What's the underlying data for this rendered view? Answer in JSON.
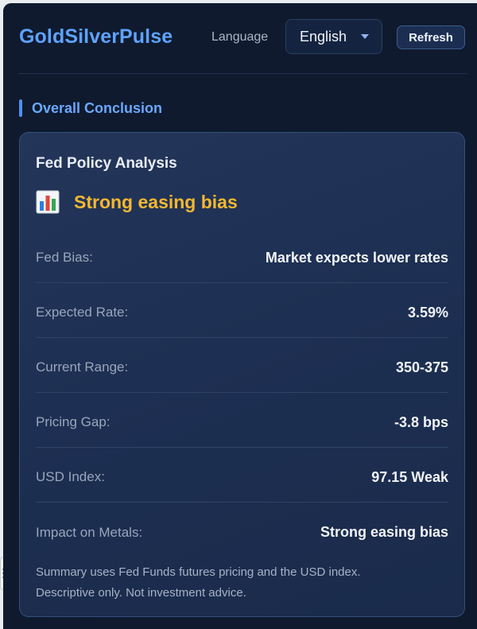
{
  "header": {
    "brand": "GoldSilverPulse",
    "language_label": "Language",
    "language_selected": "English",
    "refresh_label": "Refresh"
  },
  "section": {
    "title": "Overall Conclusion"
  },
  "card": {
    "title": "Fed Policy Analysis",
    "verdict_icon": "bar-chart-icon",
    "verdict": "Strong easing bias",
    "verdict_color": "#f5b731",
    "rows": [
      {
        "label": "Fed Bias:",
        "value": "Market expects lower rates"
      },
      {
        "label": "Expected Rate:",
        "value": "3.59%"
      },
      {
        "label": "Current Range:",
        "value": "350-375"
      },
      {
        "label": "Pricing Gap:",
        "value": "-3.8 bps"
      },
      {
        "label": "USD Index:",
        "value": "97.15 Weak"
      },
      {
        "label": "Impact on Metals:",
        "value": "Strong easing bias"
      }
    ],
    "footnote_line1": "Summary uses Fed Funds futures pricing and the USD index.",
    "footnote_line2": "Descriptive only. Not investment advice."
  },
  "colors": {
    "background": "#0f1a2e",
    "accent": "#5ea2ff",
    "warning": "#f5b731"
  }
}
